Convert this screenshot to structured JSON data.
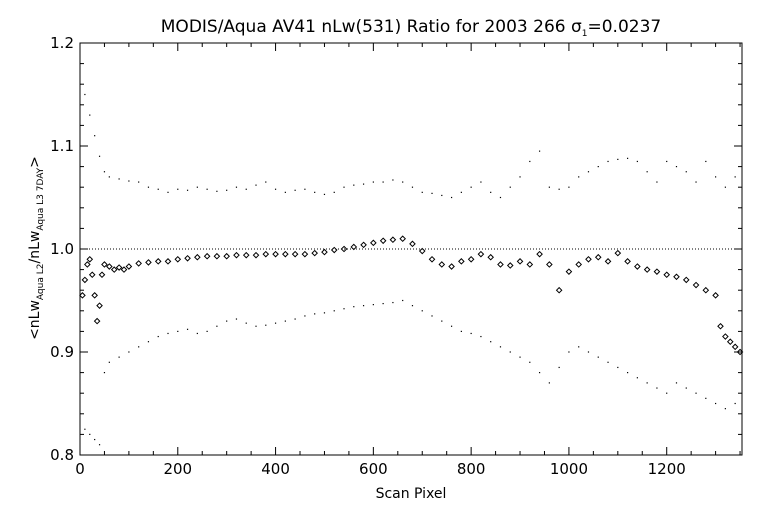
{
  "chart_data": {
    "type": "scatter",
    "title_main": "MODIS/Aqua AV41 nLw(531) Ratio for 2003 266 σ",
    "title_sub": "1",
    "title_tail": "=0.0237",
    "xlabel": "Scan Pixel",
    "ylabel_parts": {
      "open": "<nLw",
      "sub1": "Aqua L2",
      "slash": "/nLw",
      "sub2": "Aqua L3 7DAY",
      "close": ">"
    },
    "xlim": [
      0,
      1354
    ],
    "ylim": [
      0.8,
      1.2
    ],
    "x_ticks": [
      0,
      200,
      400,
      600,
      800,
      1000,
      1200
    ],
    "x_tick_labels": [
      "0",
      "200",
      "400",
      "600",
      "800",
      "1000",
      "1200"
    ],
    "y_ticks": [
      0.8,
      0.9,
      1.0,
      1.1,
      1.2
    ],
    "y_tick_labels": [
      "0.8",
      "0.9",
      "1.0",
      "1.1",
      "1.2"
    ],
    "reference_line": 1.0,
    "series": [
      {
        "role": "mean ratio",
        "marker": "diamond",
        "x": [
          5,
          10,
          15,
          20,
          25,
          30,
          35,
          40,
          45,
          50,
          60,
          70,
          80,
          90,
          100,
          120,
          140,
          160,
          180,
          200,
          220,
          240,
          260,
          280,
          300,
          320,
          340,
          360,
          380,
          400,
          420,
          440,
          460,
          480,
          500,
          520,
          540,
          560,
          580,
          600,
          620,
          640,
          660,
          680,
          700,
          720,
          740,
          760,
          780,
          800,
          820,
          840,
          860,
          880,
          900,
          920,
          940,
          960,
          980,
          1000,
          1020,
          1040,
          1060,
          1080,
          1100,
          1120,
          1140,
          1160,
          1180,
          1200,
          1220,
          1240,
          1260,
          1280,
          1300,
          1310,
          1320,
          1330,
          1340,
          1350
        ],
        "y": [
          0.955,
          0.97,
          0.985,
          0.99,
          0.975,
          0.955,
          0.93,
          0.945,
          0.975,
          0.985,
          0.983,
          0.98,
          0.982,
          0.98,
          0.983,
          0.986,
          0.987,
          0.988,
          0.988,
          0.99,
          0.991,
          0.992,
          0.993,
          0.993,
          0.993,
          0.994,
          0.994,
          0.994,
          0.995,
          0.995,
          0.995,
          0.995,
          0.995,
          0.996,
          0.997,
          0.999,
          1.0,
          1.002,
          1.004,
          1.006,
          1.008,
          1.009,
          1.01,
          1.005,
          0.998,
          0.99,
          0.985,
          0.983,
          0.988,
          0.99,
          0.995,
          0.992,
          0.985,
          0.984,
          0.988,
          0.985,
          0.995,
          0.985,
          0.96,
          0.978,
          0.985,
          0.99,
          0.992,
          0.988,
          0.996,
          0.988,
          0.983,
          0.98,
          0.978,
          0.975,
          0.973,
          0.97,
          0.965,
          0.96,
          0.955,
          0.925,
          0.915,
          0.91,
          0.905,
          0.9
        ]
      },
      {
        "role": "upper bound",
        "marker": "dot",
        "x": [
          10,
          20,
          30,
          40,
          50,
          60,
          80,
          100,
          120,
          140,
          160,
          180,
          200,
          220,
          240,
          260,
          280,
          300,
          320,
          340,
          360,
          380,
          400,
          420,
          440,
          460,
          480,
          500,
          520,
          540,
          560,
          580,
          600,
          620,
          640,
          660,
          680,
          700,
          720,
          740,
          760,
          780,
          800,
          820,
          840,
          860,
          880,
          900,
          920,
          940,
          960,
          980,
          1000,
          1020,
          1040,
          1060,
          1080,
          1100,
          1120,
          1140,
          1160,
          1180,
          1200,
          1220,
          1240,
          1260,
          1280,
          1300,
          1320,
          1340
        ],
        "y": [
          1.15,
          1.13,
          1.11,
          1.09,
          1.075,
          1.07,
          1.068,
          1.066,
          1.065,
          1.06,
          1.058,
          1.055,
          1.058,
          1.057,
          1.06,
          1.058,
          1.056,
          1.057,
          1.06,
          1.058,
          1.062,
          1.065,
          1.058,
          1.055,
          1.057,
          1.058,
          1.055,
          1.053,
          1.055,
          1.06,
          1.062,
          1.063,
          1.065,
          1.065,
          1.067,
          1.065,
          1.06,
          1.055,
          1.054,
          1.052,
          1.05,
          1.055,
          1.06,
          1.065,
          1.055,
          1.05,
          1.06,
          1.07,
          1.085,
          1.095,
          1.06,
          1.058,
          1.06,
          1.07,
          1.075,
          1.08,
          1.085,
          1.087,
          1.088,
          1.085,
          1.075,
          1.065,
          1.085,
          1.08,
          1.075,
          1.065,
          1.085,
          1.07,
          1.06,
          1.07
        ]
      },
      {
        "role": "lower bound",
        "marker": "dot",
        "x": [
          10,
          20,
          30,
          40,
          50,
          60,
          80,
          100,
          120,
          140,
          160,
          180,
          200,
          220,
          240,
          260,
          280,
          300,
          320,
          340,
          360,
          380,
          400,
          420,
          440,
          460,
          480,
          500,
          520,
          540,
          560,
          580,
          600,
          620,
          640,
          660,
          680,
          700,
          720,
          740,
          760,
          780,
          800,
          820,
          840,
          860,
          880,
          900,
          920,
          940,
          960,
          980,
          1000,
          1020,
          1040,
          1060,
          1080,
          1100,
          1120,
          1140,
          1160,
          1180,
          1200,
          1220,
          1240,
          1260,
          1280,
          1300,
          1320,
          1340
        ],
        "y": [
          0.825,
          0.82,
          0.815,
          0.81,
          0.88,
          0.89,
          0.895,
          0.9,
          0.905,
          0.91,
          0.915,
          0.918,
          0.92,
          0.922,
          0.918,
          0.92,
          0.925,
          0.93,
          0.932,
          0.928,
          0.925,
          0.926,
          0.928,
          0.93,
          0.932,
          0.935,
          0.937,
          0.938,
          0.94,
          0.942,
          0.944,
          0.945,
          0.946,
          0.947,
          0.948,
          0.95,
          0.945,
          0.94,
          0.935,
          0.93,
          0.925,
          0.92,
          0.918,
          0.915,
          0.91,
          0.905,
          0.9,
          0.895,
          0.89,
          0.88,
          0.87,
          0.885,
          0.9,
          0.905,
          0.9,
          0.895,
          0.89,
          0.885,
          0.88,
          0.875,
          0.87,
          0.865,
          0.86,
          0.87,
          0.865,
          0.86,
          0.855,
          0.85,
          0.845,
          0.85
        ]
      }
    ]
  }
}
